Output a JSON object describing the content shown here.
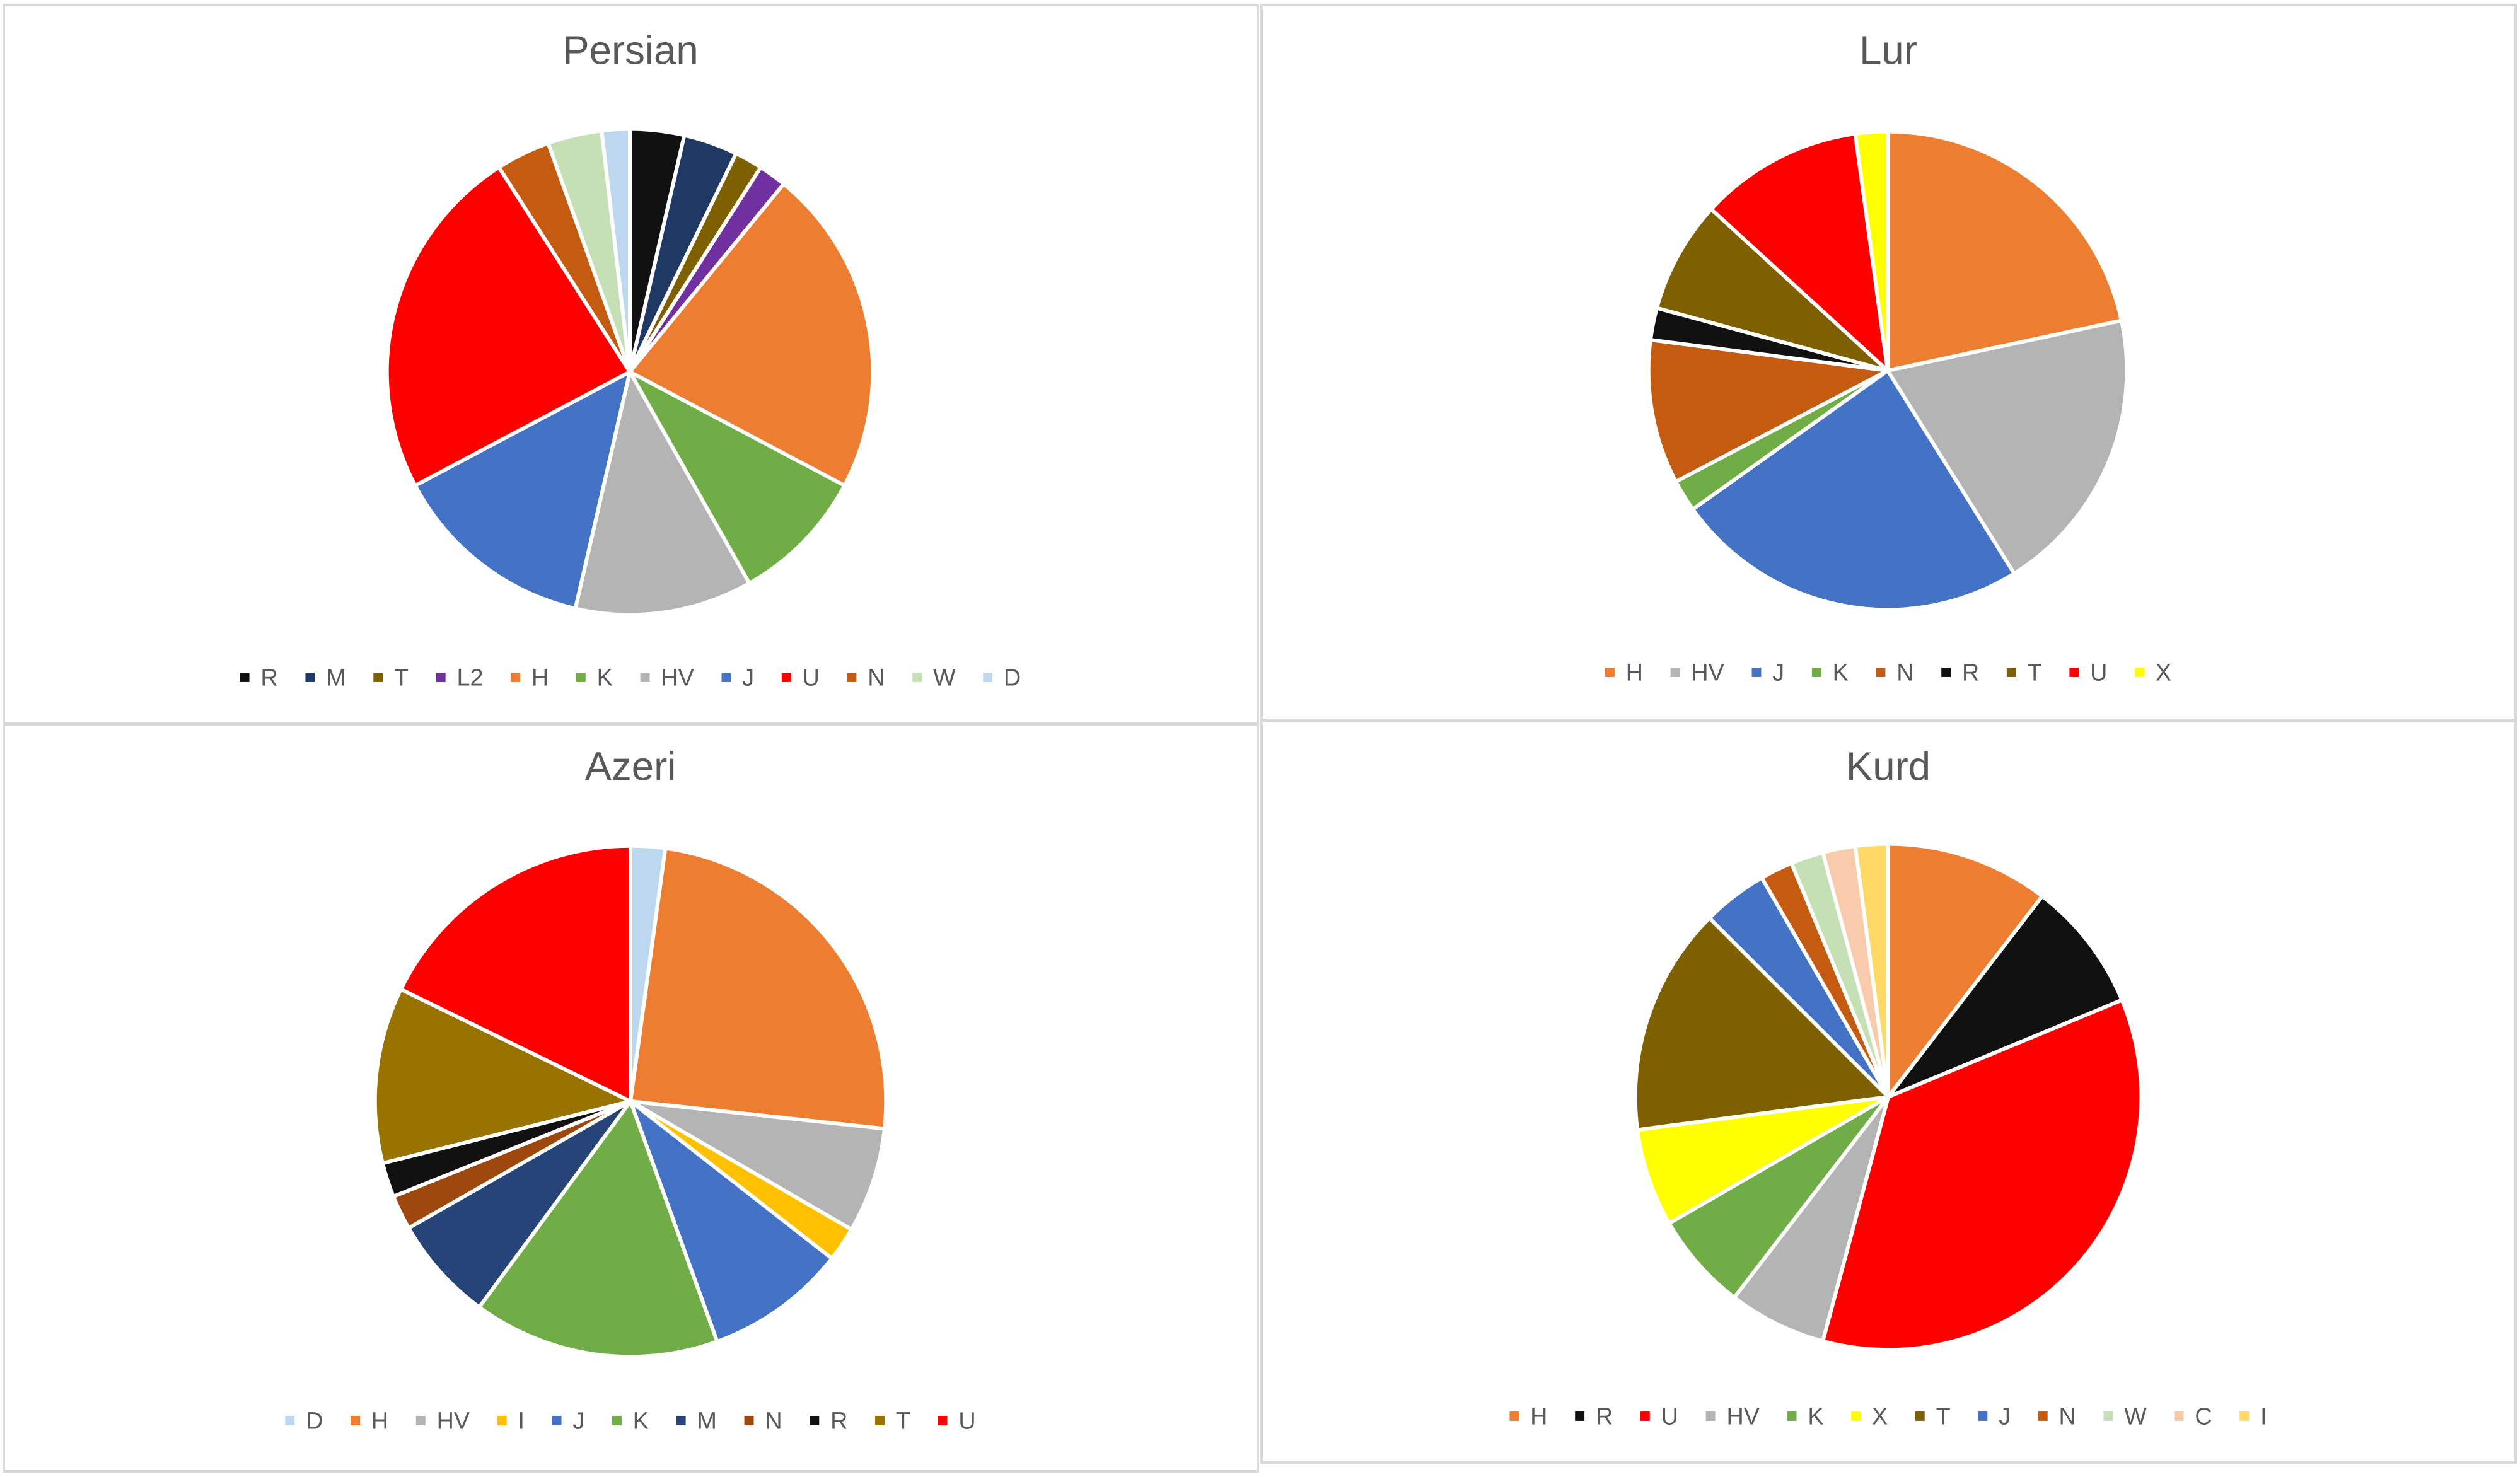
{
  "chart_data": [
    {
      "type": "pie",
      "title": "Persian",
      "categories": [
        "R",
        "M",
        "T",
        "L2",
        "H",
        "K",
        "HV",
        "J",
        "U",
        "N",
        "W",
        "D"
      ],
      "values": [
        3.3,
        3.3,
        1.7,
        1.7,
        20.0,
        8.3,
        10.8,
        12.5,
        21.7,
        3.3,
        3.3,
        1.7
      ],
      "colors": [
        "#111111",
        "#203864",
        "#7f6000",
        "#7030a0",
        "#ed7d31",
        "#70ad47",
        "#b4b4b4",
        "#4472c4",
        "#ff0000",
        "#c55a11",
        "#c5e0b4",
        "#bdd7ee"
      ],
      "legend": "bottom"
    },
    {
      "type": "pie",
      "title": "Lur",
      "categories": [
        "H",
        "HV",
        "J",
        "K",
        "N",
        "R",
        "T",
        "U",
        "X"
      ],
      "values": [
        20.0,
        18.0,
        22.2,
        2.0,
        9.0,
        2.0,
        7.0,
        10.2,
        2.0
      ],
      "colors": [
        "#ed7d31",
        "#b4b4b4",
        "#4472c4",
        "#70ad47",
        "#c55a11",
        "#111111",
        "#7f6000",
        "#ff0000",
        "#ffff00"
      ],
      "legend": "bottom"
    },
    {
      "type": "pie",
      "title": "Azeri",
      "categories": [
        "D",
        "H",
        "HV",
        "I",
        "J",
        "K",
        "M",
        "N",
        "R",
        "T",
        "U"
      ],
      "values": [
        2.1,
        23.6,
        6.4,
        2.1,
        8.6,
        15.0,
        6.4,
        2.1,
        2.1,
        10.7,
        17.1
      ],
      "colors": [
        "#bdd7ee",
        "#ed7d31",
        "#b4b4b4",
        "#ffc000",
        "#4472c4",
        "#70ad47",
        "#264478",
        "#9e480e",
        "#111111",
        "#997300",
        "#ff0000"
      ],
      "legend": "bottom"
    },
    {
      "type": "pie",
      "title": "Kurd",
      "categories": [
        "H",
        "R",
        "U",
        "HV",
        "K",
        "X",
        "T",
        "J",
        "N",
        "W",
        "C",
        "I"
      ],
      "values": [
        10.0,
        8.0,
        34.0,
        6.0,
        6.0,
        6.0,
        14.0,
        4.0,
        2.0,
        2.0,
        2.0,
        2.0
      ],
      "colors": [
        "#ed7d31",
        "#111111",
        "#ff0000",
        "#b4b4b4",
        "#70ad47",
        "#ffff00",
        "#7f6000",
        "#4472c4",
        "#c55a11",
        "#c5e0b4",
        "#f8cbad",
        "#ffd966"
      ],
      "legend": "bottom"
    }
  ]
}
